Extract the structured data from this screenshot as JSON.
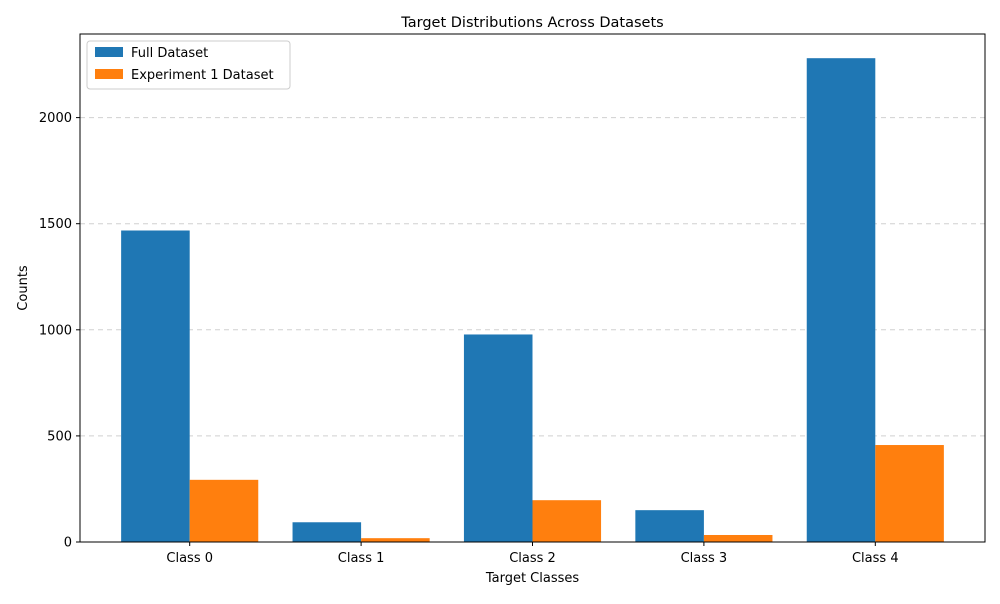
{
  "chart_data": {
    "type": "bar",
    "title": "Target Distributions Across Datasets",
    "xlabel": "Target Classes",
    "ylabel": "Counts",
    "categories": [
      "Class 0",
      "Class 1",
      "Class 2",
      "Class 3",
      "Class 4"
    ],
    "series": [
      {
        "name": "Full Dataset",
        "color": "#1f77b4",
        "values": [
          1468,
          93,
          978,
          150,
          2280
        ]
      },
      {
        "name": "Experiment 1 Dataset",
        "color": "#ff7f0e",
        "values": [
          293,
          18,
          197,
          33,
          457
        ]
      }
    ],
    "ylim": [
      0,
      2394
    ],
    "yticks": [
      0,
      500,
      1000,
      1500,
      2000
    ],
    "grid": "y-dashed",
    "legend_position": "top-left"
  }
}
